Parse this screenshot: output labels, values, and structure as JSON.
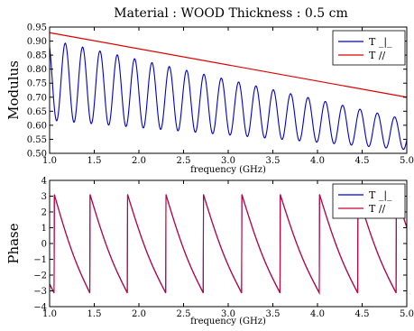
{
  "title": "Material : WOOD    Thickness : 0.5 cm",
  "chart_data": [
    {
      "type": "line",
      "ylabel": "Modulus",
      "xlabel": "frequency (GHz)",
      "xlim": [
        1.0,
        5.0
      ],
      "ylim": [
        0.5,
        0.95
      ],
      "xticks": [
        "1.0",
        "1.5",
        "2.0",
        "2.5",
        "3.0",
        "3.5",
        "4.0",
        "4.5",
        "5.0"
      ],
      "yticks": [
        "0.50",
        "0.55",
        "0.60",
        "0.65",
        "0.70",
        "0.75",
        "0.80",
        "0.85",
        "0.90",
        "0.95"
      ],
      "legend_position": "top-right",
      "series": [
        {
          "name": "T _|_",
          "color": "#0000cc",
          "description": "oscillating, ~21 periods over 1-5 GHz",
          "x": [
            1.0,
            1.1,
            1.2,
            1.3,
            1.4,
            1.5,
            1.6,
            1.7,
            1.8,
            1.9,
            2.0,
            2.2,
            2.4,
            2.6,
            2.8,
            3.0,
            3.2,
            3.4,
            3.6,
            3.8,
            4.0,
            4.2,
            4.4,
            4.6,
            4.8,
            5.0
          ],
          "peaks": [
            0.9,
            0.875,
            0.86,
            0.845,
            0.83,
            0.815,
            0.8,
            0.785,
            0.77,
            0.755,
            0.74,
            0.725,
            0.71,
            0.695,
            0.685,
            0.675,
            0.665,
            0.655,
            0.645,
            0.635,
            0.625,
            0.62
          ],
          "troughs": [
            0.62,
            0.615,
            0.61,
            0.605,
            0.6,
            0.595,
            0.59,
            0.585,
            0.58,
            0.575,
            0.57,
            0.565,
            0.56,
            0.555,
            0.55,
            0.545,
            0.54,
            0.535,
            0.53,
            0.525,
            0.52
          ]
        },
        {
          "name": "T //",
          "color": "#dd0000",
          "x": [
            1.0,
            5.0
          ],
          "values": [
            0.93,
            0.7
          ]
        }
      ]
    },
    {
      "type": "line",
      "ylabel": "Phase",
      "xlabel": "frequency (GHz)",
      "xlim": [
        1.0,
        5.0
      ],
      "ylim": [
        -4,
        4
      ],
      "xticks": [
        "1.0",
        "1.5",
        "2.0",
        "2.5",
        "3.0",
        "3.5",
        "4.0",
        "4.5",
        "5.0"
      ],
      "yticks": [
        "−4",
        "−3",
        "−2",
        "−1",
        "0",
        "1",
        "2",
        "3",
        "4"
      ],
      "legend_position": "top-right",
      "series": [
        {
          "name": "T _|_",
          "color": "#0000cc",
          "description": "sawtooth decreasing from 3.14 to -3.14, wrapping every ~0.44 GHz",
          "jumps_at": [
            1.05,
            1.45,
            1.87,
            2.3,
            2.72,
            3.15,
            3.58,
            4.02,
            4.45,
            4.88
          ]
        },
        {
          "name": "T //",
          "color": "#cc0033",
          "description": "overlays T _|_ closely"
        }
      ]
    }
  ]
}
